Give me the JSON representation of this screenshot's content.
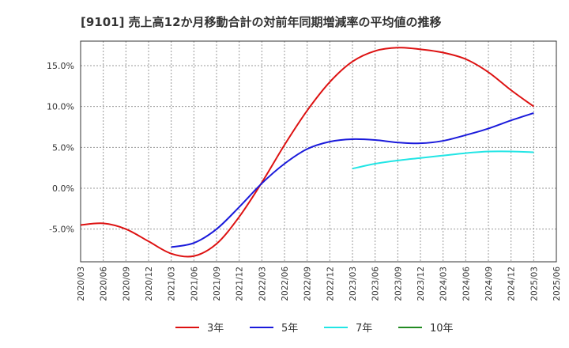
{
  "chart_data": {
    "type": "line",
    "title": "[9101]  売上高12か月移動合計の対前年同期増減率の平均値の推移",
    "xlabel": "",
    "ylabel": "",
    "x": [
      "2020/03",
      "2020/06",
      "2020/09",
      "2020/12",
      "2021/03",
      "2021/06",
      "2021/09",
      "2021/12",
      "2022/03",
      "2022/06",
      "2022/09",
      "2022/12",
      "2023/03",
      "2023/06",
      "2023/09",
      "2023/12",
      "2024/03",
      "2024/06",
      "2024/09",
      "2024/12",
      "2025/03",
      "2025/06"
    ],
    "ylim": [
      -9.0,
      18.0
    ],
    "yticks": [
      {
        "value": -5,
        "label": "-5.0%"
      },
      {
        "value": 0,
        "label": "0.0%"
      },
      {
        "value": 5,
        "label": "5.0%"
      },
      {
        "value": 10,
        "label": "10.0%"
      },
      {
        "value": 15,
        "label": "15.0%"
      }
    ],
    "grid": true,
    "legend_position": "bottom",
    "series": [
      {
        "name": "3年",
        "color": "#dd1111",
        "values": [
          -4.5,
          -4.3,
          -5.0,
          -6.5,
          -8.0,
          -8.3,
          -6.8,
          -3.5,
          0.7,
          5.3,
          9.5,
          13.0,
          15.5,
          16.8,
          17.2,
          17.0,
          16.6,
          15.8,
          14.2,
          12.0,
          10.0,
          null
        ]
      },
      {
        "name": "5年",
        "color": "#1a1adb",
        "values": [
          null,
          null,
          null,
          null,
          -7.2,
          -6.7,
          -5.0,
          -2.3,
          0.6,
          3.0,
          4.8,
          5.7,
          6.0,
          5.9,
          5.6,
          5.5,
          5.8,
          6.5,
          7.3,
          8.3,
          9.2,
          null
        ]
      },
      {
        "name": "7年",
        "color": "#22e5e5",
        "values": [
          null,
          null,
          null,
          null,
          null,
          null,
          null,
          null,
          null,
          null,
          null,
          null,
          2.4,
          3.0,
          3.4,
          3.7,
          4.0,
          4.3,
          4.5,
          4.5,
          4.4,
          null
        ]
      },
      {
        "name": "10年",
        "color": "#228b22",
        "values": [
          null,
          null,
          null,
          null,
          null,
          null,
          null,
          null,
          null,
          null,
          null,
          null,
          null,
          null,
          null,
          null,
          null,
          null,
          null,
          null,
          null,
          null
        ]
      }
    ]
  }
}
